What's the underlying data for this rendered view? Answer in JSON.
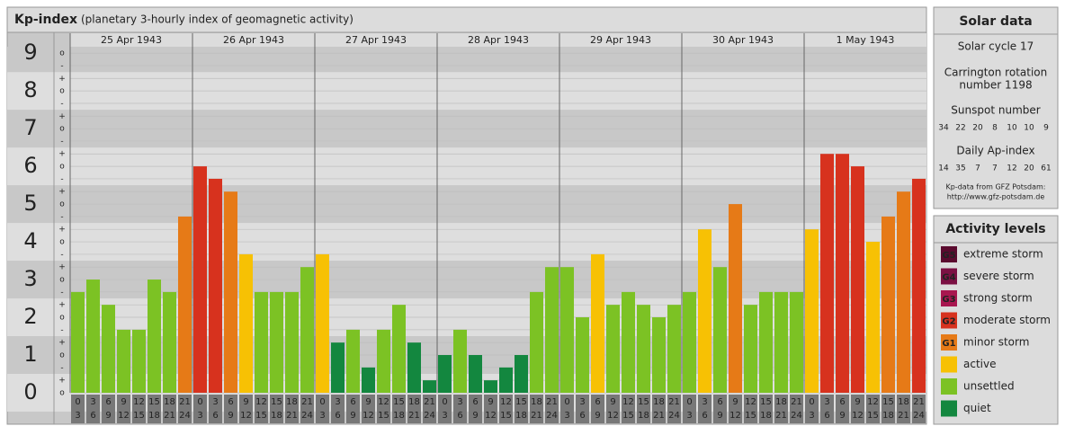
{
  "chart_data": {
    "type": "bar",
    "title": "Kp-index",
    "subtitle": "(planetary 3-hourly index of geomagnetic activity)",
    "days": [
      "25 Apr 1943",
      "26 Apr 1943",
      "27 Apr 1943",
      "28 Apr 1943",
      "29 Apr 1943",
      "30 Apr 1943",
      "1 May 1943"
    ],
    "slots": [
      [
        "0",
        "3"
      ],
      [
        "3",
        "6"
      ],
      [
        "6",
        "9"
      ],
      [
        "9",
        "12"
      ],
      [
        "12",
        "15"
      ],
      [
        "15",
        "18"
      ],
      [
        "18",
        "21"
      ],
      [
        "21",
        "24"
      ]
    ],
    "values": [
      [
        2.67,
        3,
        2.33,
        1.67,
        1.67,
        3,
        2.67,
        4.67
      ],
      [
        6,
        5.67,
        5.33,
        3.67,
        2.67,
        2.67,
        2.67,
        3.33
      ],
      [
        3.67,
        1.33,
        1.67,
        0.67,
        1.67,
        2.33,
        1.33,
        0.33
      ],
      [
        1,
        1.67,
        1,
        0.33,
        0.67,
        1,
        2.67,
        3.33
      ],
      [
        3.33,
        2,
        3.67,
        2.33,
        2.67,
        2.33,
        2,
        2.33
      ],
      [
        2.67,
        4.33,
        3.33,
        5,
        2.33,
        2.67,
        2.67,
        2.67
      ],
      [
        4.33,
        6.33,
        6.33,
        6,
        4,
        4.67,
        5.33,
        5.67
      ]
    ],
    "colors": [
      [
        "#7cc224",
        "#7cc224",
        "#7cc224",
        "#7cc224",
        "#7cc224",
        "#7cc224",
        "#7cc224",
        "#e67a17"
      ],
      [
        "#d7321e",
        "#d7321e",
        "#e67a17",
        "#f7c104",
        "#7cc224",
        "#7cc224",
        "#7cc224",
        "#7cc224"
      ],
      [
        "#f7c104",
        "#13873f",
        "#7cc224",
        "#13873f",
        "#7cc224",
        "#7cc224",
        "#13873f",
        "#13873f"
      ],
      [
        "#13873f",
        "#7cc224",
        "#13873f",
        "#13873f",
        "#13873f",
        "#13873f",
        "#7cc224",
        "#7cc224"
      ],
      [
        "#7cc224",
        "#7cc224",
        "#f7c104",
        "#7cc224",
        "#7cc224",
        "#7cc224",
        "#7cc224",
        "#7cc224"
      ],
      [
        "#7cc224",
        "#f7c104",
        "#7cc224",
        "#e67a17",
        "#7cc224",
        "#7cc224",
        "#7cc224",
        "#7cc224"
      ],
      [
        "#f7c104",
        "#d7321e",
        "#d7321e",
        "#d7321e",
        "#f7c104",
        "#e67a17",
        "#e67a17",
        "#d7321e"
      ]
    ],
    "ylim": [
      0,
      9.17
    ],
    "yticks": [
      0,
      1,
      2,
      3,
      4,
      5,
      6,
      7,
      8,
      9
    ],
    "yminorticks": [
      {
        "value": 0,
        "label": "o"
      },
      {
        "value": 0.33,
        "label": "+"
      },
      {
        "value": 0.67,
        "label": "-"
      },
      {
        "value": 1,
        "label": "o"
      },
      {
        "value": 1.33,
        "label": "+"
      },
      {
        "value": 1.67,
        "label": "-"
      },
      {
        "value": 2,
        "label": "o"
      },
      {
        "value": 2.33,
        "label": "+"
      },
      {
        "value": 2.67,
        "label": "-"
      },
      {
        "value": 3,
        "label": "o"
      },
      {
        "value": 3.33,
        "label": "+"
      },
      {
        "value": 3.67,
        "label": "-"
      },
      {
        "value": 4,
        "label": "o"
      },
      {
        "value": 4.33,
        "label": "+"
      },
      {
        "value": 4.67,
        "label": "-"
      },
      {
        "value": 5,
        "label": "o"
      },
      {
        "value": 5.33,
        "label": "+"
      },
      {
        "value": 5.67,
        "label": "-"
      },
      {
        "value": 6,
        "label": "o"
      },
      {
        "value": 6.33,
        "label": "+"
      },
      {
        "value": 6.67,
        "label": "-"
      },
      {
        "value": 7,
        "label": "o"
      },
      {
        "value": 7.33,
        "label": "+"
      },
      {
        "value": 7.67,
        "label": "-"
      },
      {
        "value": 8,
        "label": "o"
      },
      {
        "value": 8.33,
        "label": "+"
      },
      {
        "value": 8.67,
        "label": "-"
      },
      {
        "value": 9,
        "label": "o"
      }
    ],
    "grid": true
  },
  "solar_data": {
    "title": "Solar data",
    "cycle": "Solar cycle 17",
    "carrington": [
      "Carrington rotation",
      "number 1198"
    ],
    "sunspot_title": "Sunspot number",
    "sunspot": [
      34,
      22,
      20,
      8,
      10,
      10,
      9
    ],
    "ap_title": "Daily Ap-index",
    "ap": [
      14,
      35,
      7,
      7,
      12,
      20,
      61
    ],
    "source": [
      "Kp-data from GFZ Potsdam:",
      "http://www.gfz-potsdam.de"
    ]
  },
  "activity_levels": {
    "title": "Activity levels",
    "items": [
      {
        "code": "G5",
        "label": "extreme storm",
        "color": "#5a0a2e"
      },
      {
        "code": "G4",
        "label": "severe storm",
        "color": "#7b1043"
      },
      {
        "code": "G3",
        "label": "strong storm",
        "color": "#a8164f"
      },
      {
        "code": "G2",
        "label": "moderate storm",
        "color": "#d7321e"
      },
      {
        "code": "G1",
        "label": "minor storm",
        "color": "#e67a17"
      },
      {
        "label": "active",
        "color": "#f7c104"
      },
      {
        "label": "unsettled",
        "color": "#7cc224"
      },
      {
        "label": "quiet",
        "color": "#13873f"
      }
    ]
  }
}
